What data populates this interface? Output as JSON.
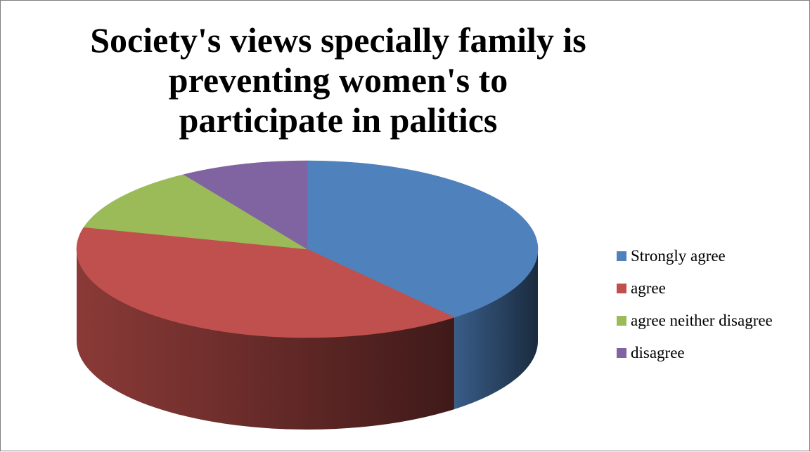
{
  "chart_data": {
    "type": "pie",
    "style": "3d",
    "title": "Society's views specially family is preventing women's to participate in palitics",
    "legend_position": "right",
    "slices": [
      {
        "label": "Strongly agree",
        "value": 39,
        "color": "#4F81BD"
      },
      {
        "label": "agree",
        "value": 40,
        "color": "#C0504D"
      },
      {
        "label": "agree neither disagree",
        "value": 12,
        "color": "#9BBB59"
      },
      {
        "label": "disagree",
        "value": 9,
        "color": "#8064A2"
      }
    ]
  }
}
